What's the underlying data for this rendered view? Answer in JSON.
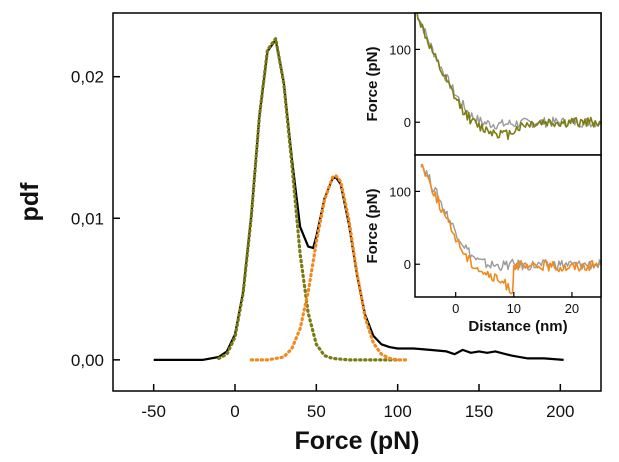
{
  "chart_data": {
    "main": {
      "type": "line",
      "xlabel": "Force (pN)",
      "ylabel": "pdf",
      "xlim": [
        -75,
        225
      ],
      "ylim": [
        -0.0022,
        0.0245
      ],
      "xticks": [
        -50,
        0,
        50,
        100,
        150,
        200
      ],
      "xtick_labels": [
        "-50",
        "0",
        "50",
        "100",
        "150",
        "200"
      ],
      "yticks": [
        0.0,
        0.01,
        0.02
      ],
      "ytick_labels": [
        "0,00",
        "0,01",
        "0,02"
      ],
      "series": [
        {
          "style": "solid",
          "color": "#000000",
          "x": [
            -50,
            -20,
            -10,
            -5,
            0,
            5,
            10,
            15,
            20,
            25,
            30,
            35,
            40,
            45,
            48,
            50,
            55,
            60,
            62,
            65,
            70,
            75,
            80,
            85,
            90,
            95,
            100,
            110,
            120,
            130,
            135,
            140,
            145,
            150,
            155,
            160,
            170,
            180,
            190,
            202
          ],
          "y": [
            0.0,
            0.0,
            0.0002,
            0.0006,
            0.0018,
            0.0048,
            0.0102,
            0.0172,
            0.0218,
            0.0226,
            0.0196,
            0.0142,
            0.0094,
            0.008,
            0.0079,
            0.0087,
            0.0114,
            0.0128,
            0.0129,
            0.0124,
            0.0096,
            0.006,
            0.0032,
            0.0017,
            0.0011,
            0.0009,
            0.0008,
            0.0008,
            0.0007,
            0.0006,
            0.0004,
            0.0007,
            0.0005,
            0.0006,
            0.0005,
            0.0006,
            0.0003,
            0.0001,
            0.0001,
            0.0
          ]
        },
        {
          "style": "dotted",
          "color": "#7a7a12",
          "x": [
            -10,
            -5,
            0,
            5,
            10,
            15,
            20,
            25,
            30,
            35,
            40,
            45,
            50,
            55,
            60,
            70,
            80,
            90,
            100
          ],
          "y": [
            0.0001,
            0.0004,
            0.0016,
            0.0047,
            0.0101,
            0.0172,
            0.0219,
            0.0227,
            0.0195,
            0.0138,
            0.0075,
            0.0033,
            0.0011,
            0.0003,
            0.0001,
            0.0,
            0.0,
            0.0,
            0.0
          ]
        },
        {
          "style": "dotted",
          "color": "#f08a1f",
          "x": [
            10,
            20,
            30,
            35,
            40,
            45,
            50,
            55,
            60,
            62,
            65,
            70,
            75,
            80,
            85,
            90,
            95,
            100,
            107
          ],
          "y": [
            0.0,
            0.0,
            0.0002,
            0.0008,
            0.0022,
            0.0048,
            0.0083,
            0.0113,
            0.0129,
            0.013,
            0.0126,
            0.0099,
            0.0061,
            0.003,
            0.0012,
            0.0004,
            0.0001,
            0.0,
            0.0
          ]
        }
      ]
    },
    "insets": [
      {
        "type": "line",
        "ylabel": "Force (pN)",
        "ylim": [
          -45,
          150
        ],
        "xlim": [
          -7,
          25
        ],
        "yticks": [
          0,
          100
        ],
        "ytick_labels": [
          "0",
          "100"
        ],
        "series": [
          {
            "color": "#9a9a9a",
            "x": [
              -7,
              -6,
              -5,
              -4,
              -3,
              -2,
              -1,
              0,
              1,
              2,
              3,
              4,
              5,
              6,
              7,
              8,
              9,
              10,
              12,
              15,
              18,
              21,
              25
            ],
            "y": [
              160,
              138,
              118,
              100,
              83,
              67,
              52,
              38,
              26,
              15,
              7,
              2,
              -1,
              -2,
              -3,
              -3,
              -2,
              -2,
              -1,
              0,
              0,
              0,
              0
            ]
          },
          {
            "color": "#7d7d14",
            "x": [
              -7,
              -6,
              -5,
              -4,
              -3,
              -2,
              -1,
              0,
              1,
              2,
              3,
              4,
              5,
              6,
              7,
              8,
              9,
              10,
              12,
              15,
              18,
              21,
              25
            ],
            "y": [
              160,
              135,
              115,
              96,
              78,
              62,
              47,
              32,
              20,
              9,
              0,
              -6,
              -9,
              -12,
              -14,
              -16,
              -17,
              -10,
              -3,
              0,
              -1,
              0,
              0
            ]
          }
        ]
      },
      {
        "type": "line",
        "xlabel": "Distance (nm)",
        "ylabel": "Force (pN)",
        "xlim": [
          -7,
          25
        ],
        "ylim": [
          -45,
          150
        ],
        "xticks": [
          0,
          10,
          20
        ],
        "xtick_labels": [
          "0",
          "10",
          "20"
        ],
        "yticks": [
          0,
          100
        ],
        "ytick_labels": [
          "0",
          "100"
        ],
        "series": [
          {
            "color": "#9a9a9a",
            "x": [
              -6,
              -5,
              -4,
              -3,
              -2,
              -1,
              0,
              1,
              2,
              3,
              4,
              5,
              6,
              7,
              8,
              9,
              10,
              12,
              15,
              18,
              21,
              25
            ],
            "y": [
              140,
              125,
              108,
              92,
              76,
              60,
              45,
              32,
              20,
              10,
              4,
              1,
              -1,
              -2,
              -2,
              -1,
              0,
              -2,
              -1,
              0,
              -1,
              0
            ]
          },
          {
            "color": "#f08a1f",
            "x": [
              -6,
              -5,
              -4,
              -3,
              -2,
              -1,
              0,
              1,
              2,
              3,
              4,
              5,
              6,
              7,
              8,
              9,
              9.8,
              10,
              12,
              15,
              18,
              21,
              25
            ],
            "y": [
              140,
              122,
              104,
              86,
              68,
              52,
              37,
              22,
              8,
              0,
              -6,
              -12,
              -17,
              -21,
              -25,
              -30,
              -38,
              0,
              -5,
              -2,
              -4,
              -3,
              0
            ]
          }
        ]
      }
    ]
  }
}
